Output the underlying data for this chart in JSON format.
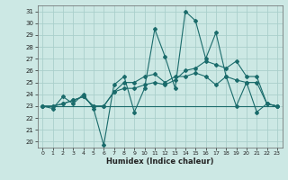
{
  "xlabel": "Humidex (Indice chaleur)",
  "bg_color": "#cce8e4",
  "grid_color": "#aacfcb",
  "line_color": "#1a6b6b",
  "xlim": [
    -0.5,
    23.5
  ],
  "ylim": [
    19.5,
    31.5
  ],
  "xticks": [
    0,
    1,
    2,
    3,
    4,
    5,
    6,
    7,
    8,
    9,
    10,
    11,
    12,
    13,
    14,
    15,
    16,
    17,
    18,
    19,
    20,
    21,
    22,
    23
  ],
  "yticks": [
    20,
    21,
    22,
    23,
    24,
    25,
    26,
    27,
    28,
    29,
    30,
    31
  ],
  "series1": [
    23.0,
    22.8,
    23.8,
    23.2,
    24.0,
    22.8,
    19.7,
    24.8,
    25.5,
    22.5,
    24.5,
    29.5,
    27.2,
    24.5,
    31.0,
    30.2,
    27.0,
    29.2,
    25.5,
    23.0,
    25.0,
    22.5,
    23.2,
    23.0
  ],
  "series2": [
    23.0,
    23.0,
    23.2,
    23.5,
    23.8,
    23.0,
    23.0,
    24.2,
    25.0,
    25.0,
    25.5,
    25.7,
    25.0,
    25.5,
    25.5,
    25.8,
    25.5,
    24.8,
    25.5,
    25.2,
    25.0,
    25.0,
    23.2,
    23.0
  ],
  "series3": [
    23.0,
    23.0,
    23.2,
    23.5,
    23.8,
    23.0,
    23.0,
    24.2,
    24.5,
    24.5,
    24.8,
    25.0,
    24.8,
    25.2,
    26.0,
    26.2,
    26.8,
    26.5,
    26.2,
    26.8,
    25.5,
    25.5,
    23.2,
    23.0
  ],
  "series4": [
    23.0,
    23.0,
    23.0,
    23.0,
    23.0,
    23.0,
    23.0,
    23.0,
    23.0,
    23.0,
    23.0,
    23.0,
    23.0,
    23.0,
    23.0,
    23.0,
    23.0,
    23.0,
    23.0,
    23.0,
    23.0,
    23.0,
    23.0,
    23.0
  ]
}
